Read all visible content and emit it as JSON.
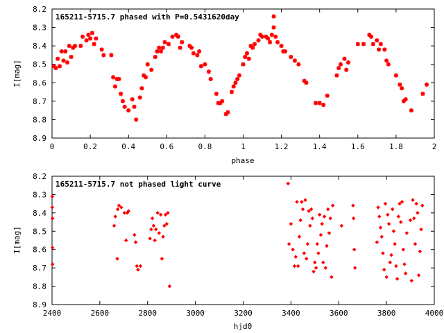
{
  "chart_data": [
    {
      "type": "scatter",
      "title": "165211-5715.7 phased with P=0.5431620day",
      "xlabel": "phase",
      "ylabel": "I[mag]",
      "xlim": [
        0,
        2
      ],
      "ylim": [
        8.2,
        8.9
      ],
      "y_inverted": true,
      "x_ticks": [
        "0",
        "0.2",
        "0.4",
        "0.6",
        "0.8",
        "1",
        "1.2",
        "1.4",
        "1.6",
        "1.8",
        "2"
      ],
      "y_ticks": [
        "8.2",
        "8.3",
        "8.4",
        "8.5",
        "8.6",
        "8.7",
        "8.8",
        "8.9"
      ],
      "marker_color": "#ff0000",
      "grid": false,
      "series": [
        {
          "points": [
            [
              0.01,
              8.51
            ],
            [
              0.02,
              8.52
            ],
            [
              0.03,
              8.47
            ],
            [
              0.04,
              8.51
            ],
            [
              0.05,
              8.43
            ],
            [
              0.06,
              8.48
            ],
            [
              0.07,
              8.43
            ],
            [
              0.08,
              8.49
            ],
            [
              0.09,
              8.4
            ],
            [
              0.1,
              8.46
            ],
            [
              0.11,
              8.41
            ],
            [
              0.12,
              8.4
            ],
            [
              0.15,
              8.4
            ],
            [
              0.16,
              8.35
            ],
            [
              0.18,
              8.37
            ],
            [
              0.19,
              8.34
            ],
            [
              0.2,
              8.36
            ],
            [
              0.21,
              8.33
            ],
            [
              0.22,
              8.39
            ],
            [
              0.23,
              8.36
            ],
            [
              0.26,
              8.42
            ],
            [
              0.27,
              8.45
            ],
            [
              0.31,
              8.45
            ],
            [
              0.32,
              8.57
            ],
            [
              0.33,
              8.62
            ],
            [
              0.34,
              8.58
            ],
            [
              0.35,
              8.58
            ],
            [
              0.36,
              8.66
            ],
            [
              0.37,
              8.7
            ],
            [
              0.38,
              8.73
            ],
            [
              0.4,
              8.75
            ],
            [
              0.42,
              8.69
            ],
            [
              0.43,
              8.73
            ],
            [
              0.44,
              8.8
            ],
            [
              0.46,
              8.68
            ],
            [
              0.47,
              8.63
            ],
            [
              0.48,
              8.56
            ],
            [
              0.49,
              8.57
            ],
            [
              0.5,
              8.5
            ],
            [
              0.52,
              8.53
            ],
            [
              0.54,
              8.46
            ],
            [
              0.55,
              8.43
            ],
            [
              0.56,
              8.41
            ],
            [
              0.57,
              8.43
            ],
            [
              0.58,
              8.41
            ],
            [
              0.59,
              8.38
            ],
            [
              0.61,
              8.39
            ],
            [
              0.63,
              8.35
            ],
            [
              0.65,
              8.34
            ],
            [
              0.66,
              8.35
            ],
            [
              0.67,
              8.41
            ],
            [
              0.68,
              8.38
            ],
            [
              0.72,
              8.4
            ],
            [
              0.73,
              8.41
            ],
            [
              0.74,
              8.44
            ],
            [
              0.76,
              8.45
            ],
            [
              0.77,
              8.43
            ],
            [
              0.78,
              8.51
            ],
            [
              0.8,
              8.5
            ],
            [
              0.82,
              8.54
            ],
            [
              0.83,
              8.58
            ],
            [
              0.86,
              8.66
            ],
            [
              0.87,
              8.71
            ],
            [
              0.88,
              8.71
            ],
            [
              0.89,
              8.7
            ],
            [
              0.91,
              8.77
            ],
            [
              0.92,
              8.76
            ],
            [
              0.94,
              8.65
            ],
            [
              0.95,
              8.62
            ],
            [
              0.96,
              8.6
            ],
            [
              0.97,
              8.58
            ],
            [
              0.98,
              8.56
            ],
            [
              1.0,
              8.5
            ],
            [
              1.01,
              8.46
            ],
            [
              1.02,
              8.44
            ],
            [
              1.03,
              8.47
            ],
            [
              1.04,
              8.4
            ],
            [
              1.05,
              8.41
            ],
            [
              1.06,
              8.39
            ],
            [
              1.08,
              8.37
            ],
            [
              1.09,
              8.34
            ],
            [
              1.1,
              8.35
            ],
            [
              1.12,
              8.35
            ],
            [
              1.13,
              8.36
            ],
            [
              1.14,
              8.38
            ],
            [
              1.15,
              8.34
            ],
            [
              1.16,
              8.3
            ],
            [
              1.16,
              8.24
            ],
            [
              1.17,
              8.35
            ],
            [
              1.18,
              8.38
            ],
            [
              1.2,
              8.4
            ],
            [
              1.21,
              8.43
            ],
            [
              1.22,
              8.43
            ],
            [
              1.25,
              8.46
            ],
            [
              1.27,
              8.48
            ],
            [
              1.29,
              8.5
            ],
            [
              1.32,
              8.59
            ],
            [
              1.33,
              8.6
            ],
            [
              1.38,
              8.71
            ],
            [
              1.4,
              8.71
            ],
            [
              1.42,
              8.72
            ],
            [
              1.44,
              8.67
            ],
            [
              1.49,
              8.56
            ],
            [
              1.5,
              8.52
            ],
            [
              1.51,
              8.5
            ],
            [
              1.53,
              8.47
            ],
            [
              1.54,
              8.53
            ],
            [
              1.55,
              8.49
            ],
            [
              1.6,
              8.39
            ],
            [
              1.63,
              8.39
            ],
            [
              1.66,
              8.34
            ],
            [
              1.67,
              8.35
            ],
            [
              1.68,
              8.39
            ],
            [
              1.7,
              8.37
            ],
            [
              1.71,
              8.42
            ],
            [
              1.72,
              8.39
            ],
            [
              1.74,
              8.42
            ],
            [
              1.75,
              8.48
            ],
            [
              1.76,
              8.5
            ],
            [
              1.8,
              8.56
            ],
            [
              1.82,
              8.61
            ],
            [
              1.83,
              8.63
            ],
            [
              1.84,
              8.7
            ],
            [
              1.85,
              8.69
            ],
            [
              1.88,
              8.75
            ],
            [
              1.94,
              8.66
            ],
            [
              1.96,
              8.61
            ]
          ]
        }
      ]
    },
    {
      "type": "scatter",
      "title": "165211-5715.7 not phased light curve",
      "xlabel": "hjd0",
      "ylabel": "I[mag]",
      "xlim": [
        2400,
        4000
      ],
      "ylim": [
        8.2,
        8.9
      ],
      "y_inverted": true,
      "x_ticks": [
        "2400",
        "2600",
        "2800",
        "3000",
        "3200",
        "3400",
        "3600",
        "3800",
        "4000"
      ],
      "y_ticks": [
        "8.2",
        "8.3",
        "8.4",
        "8.5",
        "8.6",
        "8.7",
        "8.8",
        "8.9"
      ],
      "marker_color": "#ff0000",
      "grid": false,
      "series": [
        {
          "points": [
            [
              2401,
              8.31
            ],
            [
              2401,
              8.37
            ],
            [
              2402,
              8.43
            ],
            [
              2402,
              8.59
            ],
            [
              2402,
              8.68
            ],
            [
              2660,
              8.47
            ],
            [
              2665,
              8.42
            ],
            [
              2673,
              8.65
            ],
            [
              2675,
              8.38
            ],
            [
              2680,
              8.36
            ],
            [
              2690,
              8.37
            ],
            [
              2703,
              8.4
            ],
            [
              2710,
              8.55
            ],
            [
              2715,
              8.4
            ],
            [
              2720,
              8.39
            ],
            [
              2745,
              8.52
            ],
            [
              2750,
              8.56
            ],
            [
              2755,
              8.69
            ],
            [
              2760,
              8.71
            ],
            [
              2770,
              8.69
            ],
            [
              2810,
              8.54
            ],
            [
              2815,
              8.49
            ],
            [
              2820,
              8.43
            ],
            [
              2825,
              8.47
            ],
            [
              2830,
              8.55
            ],
            [
              2835,
              8.49
            ],
            [
              2842,
              8.4
            ],
            [
              2848,
              8.51
            ],
            [
              2855,
              8.41
            ],
            [
              2860,
              8.65
            ],
            [
              2865,
              8.53
            ],
            [
              2870,
              8.47
            ],
            [
              2875,
              8.41
            ],
            [
              2880,
              8.46
            ],
            [
              2885,
              8.4
            ],
            [
              2892,
              8.8
            ],
            [
              3388,
              8.24
            ],
            [
              3392,
              8.57
            ],
            [
              3400,
              8.46
            ],
            [
              3408,
              8.6
            ],
            [
              3415,
              8.69
            ],
            [
              3420,
              8.64
            ],
            [
              3425,
              8.34
            ],
            [
              3430,
              8.69
            ],
            [
              3435,
              8.53
            ],
            [
              3440,
              8.44
            ],
            [
              3445,
              8.34
            ],
            [
              3450,
              8.38
            ],
            [
              3455,
              8.62
            ],
            [
              3460,
              8.33
            ],
            [
              3465,
              8.65
            ],
            [
              3470,
              8.57
            ],
            [
              3475,
              8.39
            ],
            [
              3480,
              8.47
            ],
            [
              3485,
              8.38
            ],
            [
              3490,
              8.43
            ],
            [
              3495,
              8.72
            ],
            [
              3500,
              8.67
            ],
            [
              3505,
              8.7
            ],
            [
              3510,
              8.57
            ],
            [
              3515,
              8.62
            ],
            [
              3520,
              8.41
            ],
            [
              3525,
              8.52
            ],
            [
              3530,
              8.46
            ],
            [
              3535,
              8.67
            ],
            [
              3540,
              8.42
            ],
            [
              3545,
              8.7
            ],
            [
              3550,
              8.58
            ],
            [
              3555,
              8.38
            ],
            [
              3560,
              8.51
            ],
            [
              3565,
              8.43
            ],
            [
              3570,
              8.75
            ],
            [
              3575,
              8.36
            ],
            [
              3612,
              8.47
            ],
            [
              3660,
              8.36
            ],
            [
              3662,
              8.43
            ],
            [
              3665,
              8.6
            ],
            [
              3668,
              8.7
            ],
            [
              3760,
              8.56
            ],
            [
              3765,
              8.37
            ],
            [
              3770,
              8.42
            ],
            [
              3775,
              8.48
            ],
            [
              3780,
              8.53
            ],
            [
              3785,
              8.62
            ],
            [
              3790,
              8.71
            ],
            [
              3795,
              8.35
            ],
            [
              3800,
              8.75
            ],
            [
              3805,
              8.41
            ],
            [
              3810,
              8.46
            ],
            [
              3815,
              8.67
            ],
            [
              3820,
              8.63
            ],
            [
              3825,
              8.38
            ],
            [
              3830,
              8.5
            ],
            [
              3835,
              8.57
            ],
            [
              3840,
              8.69
            ],
            [
              3845,
              8.76
            ],
            [
              3850,
              8.42
            ],
            [
              3855,
              8.35
            ],
            [
              3860,
              8.45
            ],
            [
              3865,
              8.34
            ],
            [
              3870,
              8.6
            ],
            [
              3875,
              8.68
            ],
            [
              3880,
              8.73
            ],
            [
              3885,
              8.51
            ],
            [
              3900,
              8.44
            ],
            [
              3905,
              8.77
            ],
            [
              3910,
              8.33
            ],
            [
              3915,
              8.43
            ],
            [
              3920,
              8.57
            ],
            [
              3925,
              8.35
            ],
            [
              3930,
              8.4
            ],
            [
              3935,
              8.74
            ],
            [
              3940,
              8.61
            ],
            [
              3945,
              8.49
            ],
            [
              3950,
              8.36
            ]
          ]
        }
      ]
    }
  ]
}
